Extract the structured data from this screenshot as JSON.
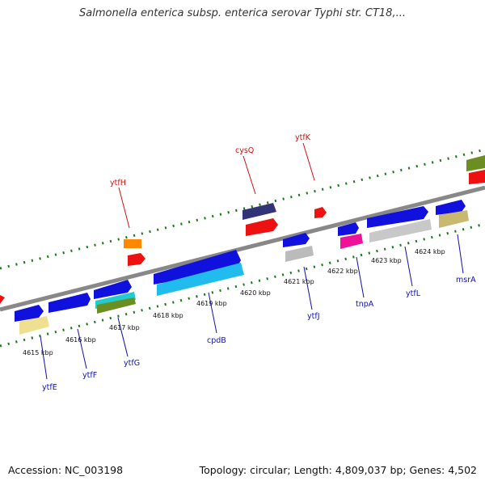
{
  "title": "Salmonella enterica subsp. enterica serovar Typhi str. CT18,...",
  "accession": "Accession: NC_003198",
  "summary": "Topology: circular; Length: 4,809,037 bp; Genes: 4,502",
  "ticks": [
    "4615 kbp",
    "4616 kbp",
    "4617 kbp",
    "4618 kbp",
    "4619 kbp",
    "4620 kbp",
    "4621 kbp",
    "4622 kbp",
    "4623 kbp",
    "4624 kbp"
  ],
  "genes_top": [
    "ytfH",
    "cysQ",
    "ytfK"
  ],
  "genes_bottom": [
    "ytfE",
    "ytfF",
    "ytfG",
    "cpdB",
    "ytfJ",
    "tnpA",
    "ytfL",
    "msrA"
  ],
  "colors": {
    "backbone": "#888888",
    "ticks": "#1a7a1a",
    "top_label": "#cc1111",
    "bottom_label": "#1111aa"
  }
}
